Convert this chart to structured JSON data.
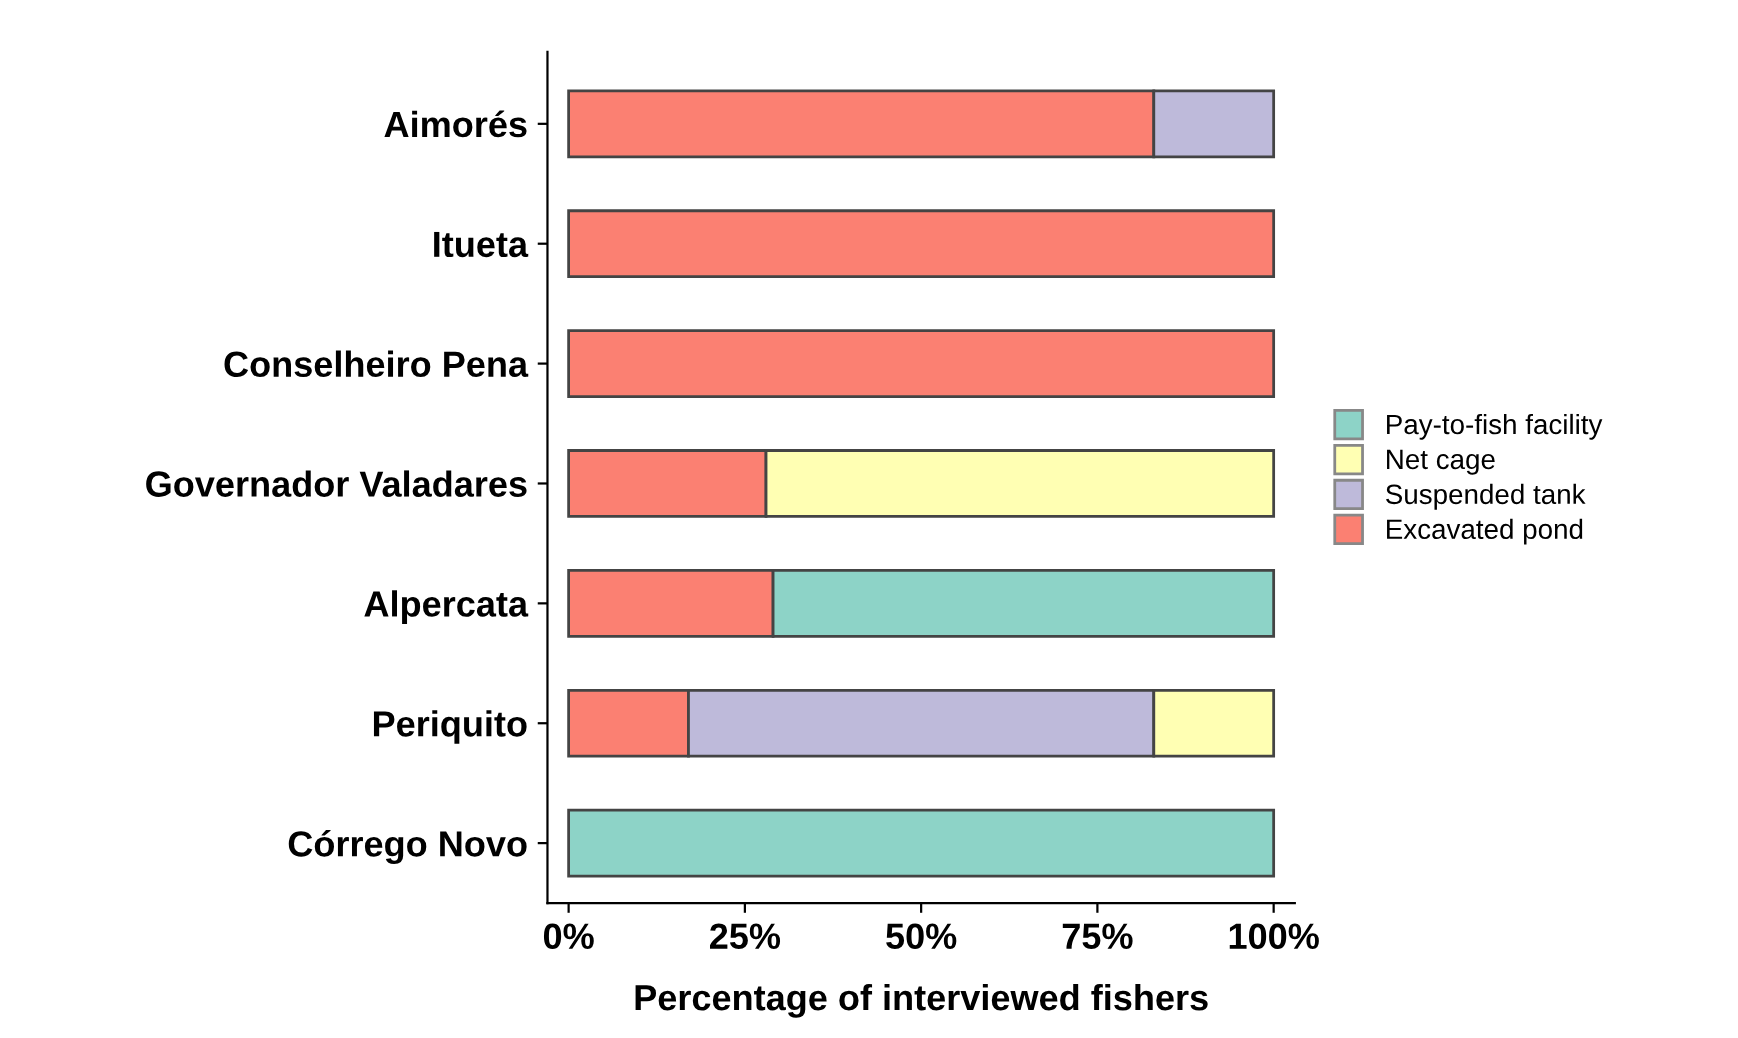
{
  "chart_data": {
    "type": "bar",
    "orientation": "horizontal",
    "stacked": true,
    "categories": [
      "Aimorés",
      "Itueta",
      "Conselheiro Pena",
      "Governador Valadares",
      "Alpercata",
      "Periquito",
      "Córrego Novo"
    ],
    "series": [
      {
        "name": "Excavated pond",
        "color": "#fb8072",
        "values": [
          83,
          100,
          100,
          28,
          29,
          17,
          0
        ]
      },
      {
        "name": "Suspended tank",
        "color": "#bebada",
        "values": [
          17,
          0,
          0,
          0,
          0,
          66,
          0
        ]
      },
      {
        "name": "Net cage",
        "color": "#ffffb3",
        "values": [
          0,
          0,
          0,
          72,
          0,
          17,
          0
        ]
      },
      {
        "name": "Pay-to-fish facility",
        "color": "#8dd3c7",
        "values": [
          0,
          0,
          0,
          0,
          71,
          0,
          100
        ]
      }
    ],
    "xlim": [
      -3,
      103
    ],
    "xticks": [
      {
        "value": 0,
        "label": "0%"
      },
      {
        "value": 25,
        "label": "25%"
      },
      {
        "value": 50,
        "label": "50%"
      },
      {
        "value": 75,
        "label": "75%"
      },
      {
        "value": 100,
        "label": "100%"
      }
    ],
    "xlabel": "Percentage of interviewed fishers",
    "legend": "right",
    "grid": false
  }
}
